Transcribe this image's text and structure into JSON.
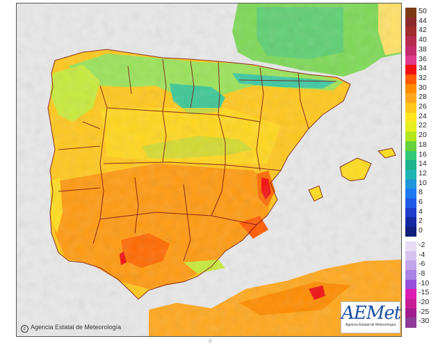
{
  "map": {
    "palette": {
      "sea": "#e8e8e8",
      "land_background": "#f7a71c",
      "border_color": "#7a1414"
    },
    "copyright": "Agencia Estatal de Meteorología",
    "logo": {
      "name": "AEMet",
      "subtitle": "Agencia Estatal de Meteorología"
    },
    "footer_mark": "gr"
  },
  "legend": {
    "positive": [
      {
        "label": "50",
        "color": "#7b3a14"
      },
      {
        "label": "44",
        "color": "#8b2a2a"
      },
      {
        "label": "42",
        "color": "#a02c2c"
      },
      {
        "label": "40",
        "color": "#b52c4c"
      },
      {
        "label": "38",
        "color": "#c42c6c"
      },
      {
        "label": "36",
        "color": "#e03a8c"
      },
      {
        "label": "34",
        "color": "#f01010"
      },
      {
        "label": "32",
        "color": "#ff5a00"
      },
      {
        "label": "30",
        "color": "#ff8c00"
      },
      {
        "label": "28",
        "color": "#ffa81e"
      },
      {
        "label": "26",
        "color": "#ffc81e"
      },
      {
        "label": "24",
        "color": "#ffe61e"
      },
      {
        "label": "22",
        "color": "#e6f01e"
      },
      {
        "label": "20",
        "color": "#b4e61e"
      },
      {
        "label": "18",
        "color": "#64d23c"
      },
      {
        "label": "16",
        "color": "#32c878"
      },
      {
        "label": "14",
        "color": "#1eb48c"
      },
      {
        "label": "12",
        "color": "#1eb4b4"
      },
      {
        "label": "10",
        "color": "#1e96dc"
      },
      {
        "label": "8",
        "color": "#1e78f0"
      },
      {
        "label": "6",
        "color": "#1e5ae6"
      },
      {
        "label": "4",
        "color": "#1e3cc8"
      },
      {
        "label": "2",
        "color": "#1428a0"
      },
      {
        "label": "0",
        "color": "#0f1e78"
      }
    ],
    "negative": [
      {
        "label": "-2",
        "color": "#e6dcf5"
      },
      {
        "label": "-4",
        "color": "#d7c3f0"
      },
      {
        "label": "-6",
        "color": "#c3a5eb"
      },
      {
        "label": "-8",
        "color": "#aa82e6"
      },
      {
        "label": "-10",
        "color": "#9650dc"
      },
      {
        "label": "-15",
        "color": "#dc1eb4"
      },
      {
        "label": "-20",
        "color": "#c81e96"
      },
      {
        "label": "-25",
        "color": "#a01e8c"
      },
      {
        "label": "-30",
        "color": "#8c3c96"
      }
    ]
  }
}
